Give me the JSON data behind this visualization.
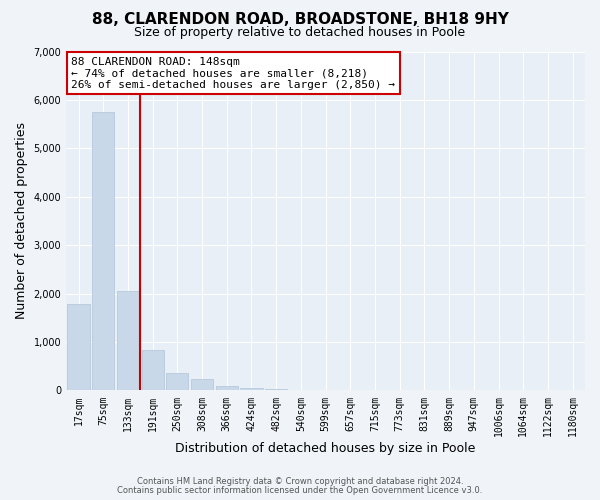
{
  "title": "88, CLARENDON ROAD, BROADSTONE, BH18 9HY",
  "subtitle": "Size of property relative to detached houses in Poole",
  "xlabel": "Distribution of detached houses by size in Poole",
  "ylabel": "Number of detached properties",
  "bin_labels": [
    "17sqm",
    "75sqm",
    "133sqm",
    "191sqm",
    "250sqm",
    "308sqm",
    "366sqm",
    "424sqm",
    "482sqm",
    "540sqm",
    "599sqm",
    "657sqm",
    "715sqm",
    "773sqm",
    "831sqm",
    "889sqm",
    "947sqm",
    "1006sqm",
    "1064sqm",
    "1122sqm",
    "1180sqm"
  ],
  "bar_heights": [
    1780,
    5750,
    2050,
    830,
    370,
    230,
    100,
    60,
    30,
    10,
    5,
    0,
    0,
    0,
    0,
    0,
    0,
    0,
    0,
    0,
    0
  ],
  "bar_color": "#c8d8e8",
  "bar_edge_color": "#b0c4d8",
  "vline_x": 2.5,
  "vline_color": "#cc0000",
  "annotation_title": "88 CLARENDON ROAD: 148sqm",
  "annotation_line1": "← 74% of detached houses are smaller (8,218)",
  "annotation_line2": "26% of semi-detached houses are larger (2,850) →",
  "annotation_box_facecolor": "#ffffff",
  "annotation_box_edgecolor": "#cc0000",
  "ylim": [
    0,
    7000
  ],
  "yticks": [
    0,
    1000,
    2000,
    3000,
    4000,
    5000,
    6000,
    7000
  ],
  "footer_line1": "Contains HM Land Registry data © Crown copyright and database right 2024.",
  "footer_line2": "Contains public sector information licensed under the Open Government Licence v3.0.",
  "fig_facecolor": "#f0f4f8",
  "plot_facecolor": "#e8eff6",
  "grid_color": "#ffffff",
  "title_fontsize": 11,
  "subtitle_fontsize": 9,
  "tick_fontsize": 7,
  "axis_label_fontsize": 9,
  "annotation_fontsize": 8,
  "footer_fontsize": 6
}
